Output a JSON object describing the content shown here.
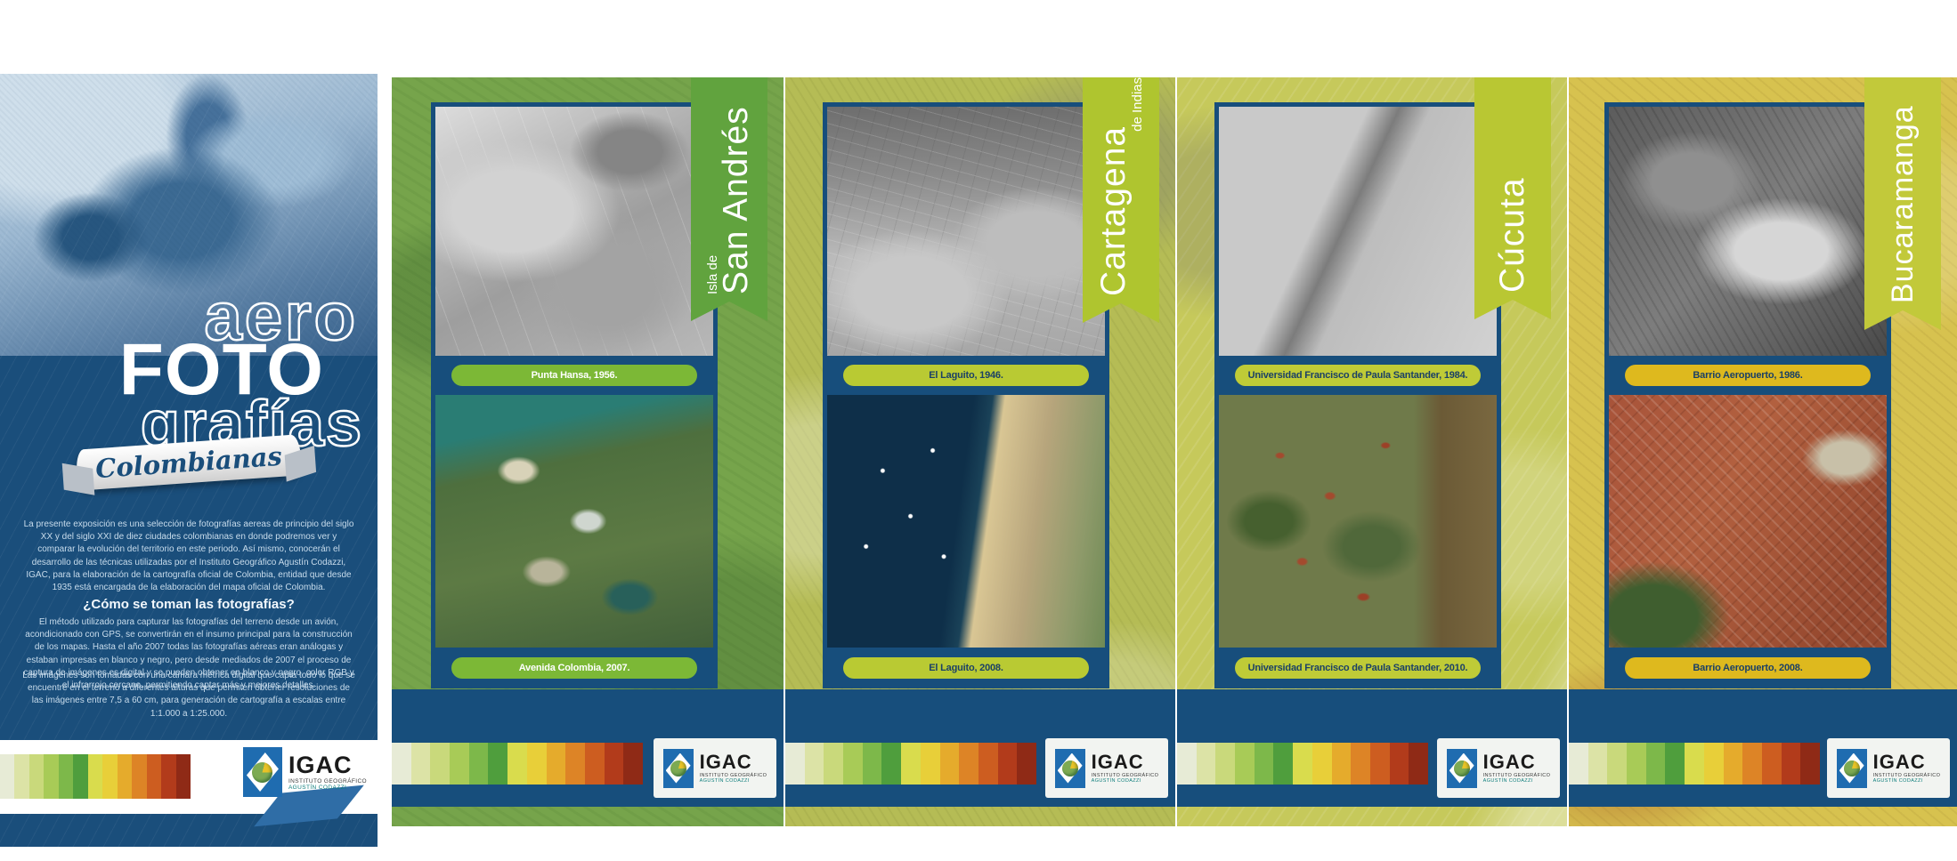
{
  "poster": {
    "intro": {
      "title": {
        "line1": "aero",
        "line2": "FOTO",
        "line3": "grafías",
        "banner": "Colombianas"
      },
      "intro_paragraph": "La presente exposición es una selección de fotografías aereas de principio del siglo XX y del siglo XXI de diez ciudades colombianas en donde podremos ver y comparar la evolución del territorio en este periodo. Así mismo, conocerán el desarrollo de las técnicas utilizadas por el Instituto Geográfico Agustín Codazzi, IGAC, para la elaboración de la cartografía oficial de Colombia, entidad que desde 1935 está encargada de la elaboración del mapa oficial de Colombia.",
      "question_heading": "¿Cómo se toman las fotografías?",
      "method_paragraph": "El método utilizado para capturar las fotografías del terreno desde un avión, acondicionado con GPS, se convertirán en el insumo principal para la construcción de los mapas. Hasta el año 2007 todas las fotografías aéreas eran análogas y estaban impresas en blanco y negro, pero desde mediados de 2007 el proceso de captura de imágenes es digital y se pueden obtener en blanco y negro, color RGB y el infrarrojo cercano, permitiendo captar más y mejores detalles.",
      "camera_paragraph": "Las imágenes son tomadas con una cámara métrica digital que capta todo lo que se encuentre en el terreno a diferentes alturas que permiten obtener resoluciones de las imágenes entre 7,5 a 60 cm, para generación de cartografía a escalas entre 1:1.000 a 1:25.000.",
      "background_color": "#1a4e7b"
    },
    "igac": {
      "acronym": "IGAC",
      "name_line1": "INSTITUTO GEOGRÁFICO",
      "name_line2": "AGUSTÍN CODAZZI",
      "mark_blue": "#1f6cb0"
    },
    "palette_strip": [
      "#e7ebd6",
      "#dce3a6",
      "#c9d97b",
      "#a8cb57",
      "#7db84a",
      "#4f9e3d",
      "#d9dc4d",
      "#e8cf39",
      "#e5ab2c",
      "#dd8426",
      "#cd5d20",
      "#b23b1b",
      "#8f2a16"
    ],
    "city_panels": [
      {
        "city": "Isla de San Andrés",
        "title_large": "San Andrés",
        "title_small": "Isla de",
        "background": "#76a44b",
        "ribbon_color": "#61a33e",
        "pill_color": "#7cb836",
        "caption_text_color": "#ffffff",
        "photos": [
          {
            "caption": "Punta Hansa, 1956."
          },
          {
            "caption": "Avenida Colombia, 2007."
          }
        ]
      },
      {
        "city": "Cartagena de Indias",
        "title_large": "Cartagena",
        "title_small": "de Indias",
        "background": "#b5bc55",
        "ribbon_color": "#afc52f",
        "pill_color": "#b9ca33",
        "caption_text_color": "#1b4066",
        "photos": [
          {
            "caption": "El Laguito, 1946."
          },
          {
            "caption": "El Laguito, 2008."
          }
        ]
      },
      {
        "city": "Cúcuta",
        "title_large": "Cúcuta",
        "title_small": "",
        "background": "#c6c95b",
        "ribbon_color": "#b9c733",
        "pill_color": "#bfcb37",
        "caption_text_color": "#1b4066",
        "photos": [
          {
            "caption": "Universidad Francisco de Paula Santander, 1984."
          },
          {
            "caption": "Universidad Francisco de Paula Santander, 2010."
          }
        ]
      },
      {
        "city": "Bucaramanga",
        "title_large": "Bucaramanga",
        "title_small": "",
        "background": "#d7c24f",
        "ribbon_color": "#c2c93a",
        "pill_color": "#deb91e",
        "caption_text_color": "#1b4066",
        "photos": [
          {
            "caption": "Barrio Aeropuerto, 1986."
          },
          {
            "caption": "Barrio Aeropuerto, 2008."
          }
        ]
      }
    ]
  }
}
